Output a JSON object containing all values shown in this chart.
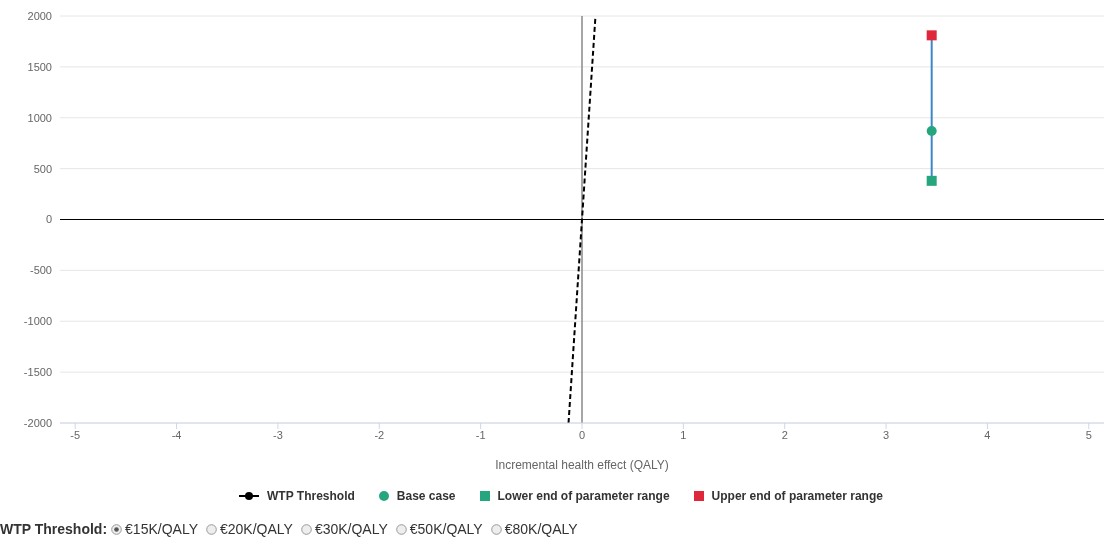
{
  "chart_data": {
    "type": "scatter",
    "xlabel": "Incremental health effect (QALY)",
    "xlim": [
      -5.15,
      5.15
    ],
    "xticks": [
      -5,
      -4,
      -3,
      -2,
      -1,
      0,
      1,
      2,
      3,
      4,
      5
    ],
    "ylim": [
      -2000,
      2000
    ],
    "yticks": [
      -2000,
      -1500,
      -1000,
      -500,
      0,
      500,
      1000,
      1500,
      2000
    ],
    "grid": "y",
    "legend": "bottom",
    "ref_lines": [
      {
        "axis": "x",
        "value": 0,
        "color": "#888888"
      },
      {
        "axis": "y",
        "value": 0,
        "color": "#000000"
      }
    ],
    "series": [
      {
        "name": "WTP Threshold",
        "type": "line",
        "color": "#000000",
        "line_style": "dashed",
        "marker": "none",
        "x": [
          -0.133,
          0.133
        ],
        "values": [
          -2000,
          2000
        ]
      },
      {
        "type": "line",
        "color": "#3c87c8",
        "line_style": "solid",
        "marker": "none",
        "x": [
          3.45,
          3.45
        ],
        "values": [
          380,
          1810
        ]
      },
      {
        "name": "Base case",
        "type": "scatter",
        "color": "#26a67e",
        "marker": "circle",
        "x": [
          3.45
        ],
        "values": [
          870
        ]
      },
      {
        "name": "Lower end of parameter range",
        "type": "scatter",
        "color": "#26a67e",
        "marker": "square",
        "x": [
          3.45
        ],
        "values": [
          380
        ]
      },
      {
        "name": "Upper end of parameter range",
        "type": "scatter",
        "color": "#e0263a",
        "marker": "square",
        "x": [
          3.45
        ],
        "values": [
          1810
        ]
      }
    ],
    "annotations": [
      "WTP Threshold:",
      "€15K/QALY",
      "€20K/QALY",
      "€30K/QALY",
      "€50K/QALY",
      "€80K/QALY"
    ]
  }
}
